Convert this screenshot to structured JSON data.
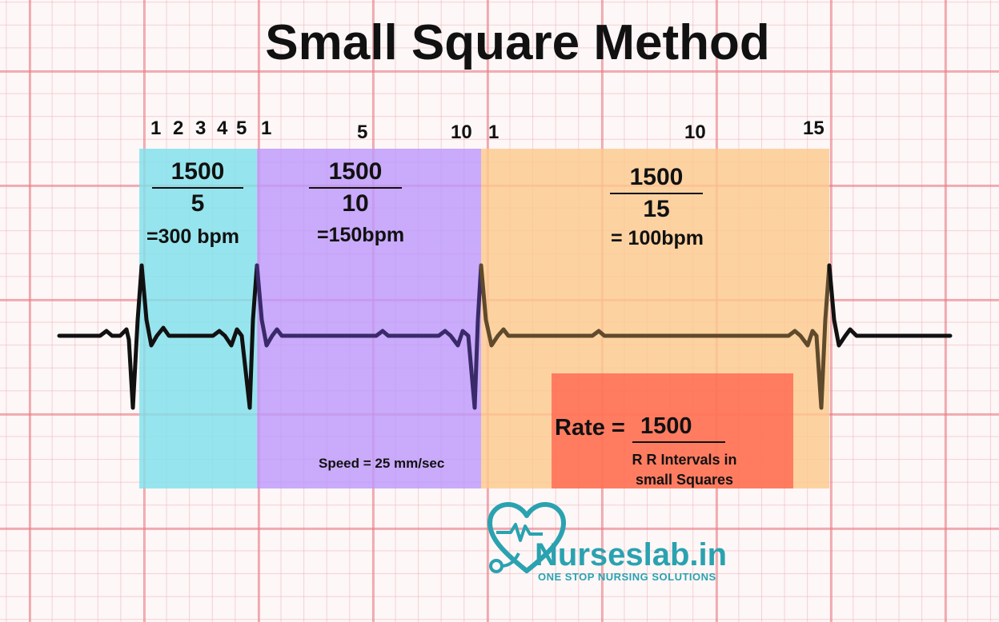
{
  "title": "Small Square Method",
  "colors": {
    "band1": "#7fe0ec",
    "band2": "#bd98fb",
    "band3": "#fcc98e",
    "rate_box": "#ff5a46",
    "brand": "#2aa2b0"
  },
  "numbers": {
    "band1": [
      "1",
      "2",
      "3",
      "4",
      "5"
    ],
    "band2": [
      "1",
      "5",
      "10"
    ],
    "band3": [
      "1",
      "10",
      "15"
    ]
  },
  "sections": [
    {
      "numerator": "1500",
      "denominator": "5",
      "result": "=300 bpm"
    },
    {
      "numerator": "1500",
      "denominator": "10",
      "result": "=150bpm"
    },
    {
      "numerator": "1500",
      "denominator": "15",
      "result": "= 100bpm"
    }
  ],
  "formula": {
    "label": "Rate =",
    "numerator": "1500",
    "denominator_line1": "R R Intervals in",
    "denominator_line2": "small Squares"
  },
  "speed": "Speed = 25 mm/sec",
  "logo": {
    "name": "Nurseslab.in",
    "tagline": "ONE STOP NURSING SOLUTIONS",
    "icon": "heart-stethoscope-icon"
  }
}
